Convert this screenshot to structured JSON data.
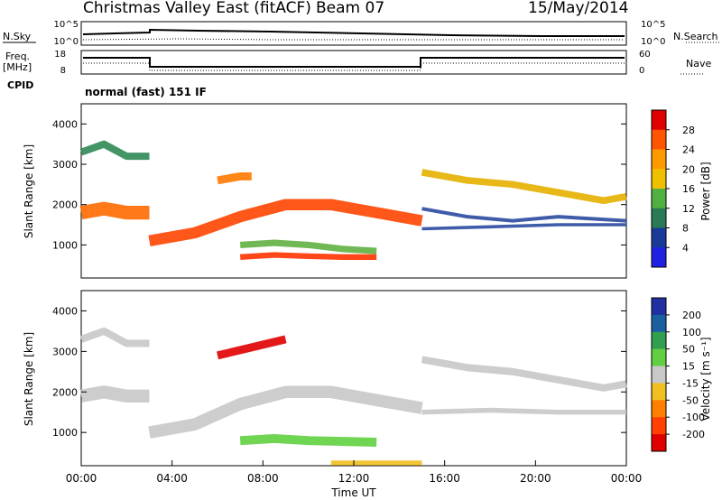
{
  "header": {
    "title": "Christmas Valley East (fitACF)",
    "beam": "Beam 07",
    "date": "15/May/2014"
  },
  "panels": {
    "nsky": {
      "left_label": "N.Sky",
      "left_ticks": [
        "10^5",
        "10^0"
      ],
      "right_ticks": [
        "10^5",
        "10^0"
      ],
      "right_label": "N.Search"
    },
    "freq": {
      "left_label_1": "Freq.",
      "left_label_2": "[MHz]",
      "left_ticks": [
        "18",
        "8"
      ],
      "right_ticks": [
        "60",
        "0"
      ],
      "right_label": "Nave"
    },
    "cpid": {
      "left_label": "CPID",
      "text": "normal (fast) 151 IF"
    }
  },
  "chart_data": [
    {
      "type": "heatmap",
      "name": "power",
      "ylabel": "Slant Range [km]",
      "yticks": [
        1000,
        2000,
        3000,
        4000
      ],
      "ylim": [
        180,
        4500
      ],
      "xlim": [
        0,
        24
      ],
      "colorbar": {
        "label": "Power [dB]",
        "ticks": [
          "28",
          "24",
          "20",
          "16",
          "12",
          "8",
          "4"
        ],
        "colors": [
          "#e00000",
          "#ff5500",
          "#ff9900",
          "#eec000",
          "#50b040",
          "#2a7a55",
          "#1a3a9a",
          "#2020e0"
        ]
      },
      "bands": [
        {
          "t": [
            0,
            1,
            2,
            3
          ],
          "r": [
            3300,
            3500,
            3200,
            3200
          ],
          "w": 180,
          "c": "#2f8a55"
        },
        {
          "t": [
            0,
            1,
            2,
            3
          ],
          "r": [
            1800,
            1900,
            1800,
            1800
          ],
          "w": 340,
          "c": "#ff6a00"
        },
        {
          "t": [
            3,
            5,
            7,
            9,
            11,
            13,
            15
          ],
          "r": [
            1100,
            1300,
            1700,
            2000,
            2000,
            1800,
            1600
          ],
          "w": 280,
          "c": "#ff4400"
        },
        {
          "t": [
            7,
            8.5,
            10,
            11.5,
            13
          ],
          "r": [
            1000,
            1050,
            1000,
            900,
            850
          ],
          "w": 160,
          "c": "#60b040"
        },
        {
          "t": [
            7,
            8.5,
            10,
            11.5,
            13
          ],
          "r": [
            700,
            750,
            720,
            700,
            700
          ],
          "w": 140,
          "c": "#ff3300"
        },
        {
          "t": [
            6,
            7,
            7.5
          ],
          "r": [
            2600,
            2700,
            2700
          ],
          "w": 200,
          "c": "#ff7a00"
        },
        {
          "t": [
            15,
            17,
            19,
            21,
            23,
            24
          ],
          "r": [
            2800,
            2600,
            2500,
            2300,
            2100,
            2200
          ],
          "w": 170,
          "c": "#e6b000"
        },
        {
          "t": [
            15,
            17,
            19,
            21,
            24
          ],
          "r": [
            1900,
            1700,
            1600,
            1700,
            1600
          ],
          "w": 90,
          "c": "#2a4aa0"
        },
        {
          "t": [
            15,
            18,
            21,
            24
          ],
          "r": [
            1400,
            1450,
            1500,
            1500
          ],
          "w": 80,
          "c": "#2a4aa0"
        }
      ]
    },
    {
      "type": "heatmap",
      "name": "velocity",
      "ylabel": "Slant Range [km]",
      "yticks": [
        1000,
        2000,
        3000,
        4000
      ],
      "ylim": [
        180,
        4500
      ],
      "xlim": [
        0,
        24
      ],
      "xticks": [
        "00:00",
        "04:00",
        "08:00",
        "12:00",
        "16:00",
        "20:00",
        "00:00"
      ],
      "xlabel": "Time UT",
      "colorbar": {
        "label": "Velocity [m s⁻¹]",
        "ticks": [
          "200",
          "100",
          "50",
          "15",
          "-15",
          "-50",
          "-100",
          "-200"
        ],
        "colors": [
          "#2030a0",
          "#1a60a0",
          "#30a050",
          "#60d040",
          "#c8c8c8",
          "#f0c020",
          "#ff8000",
          "#ff4000",
          "#e00000"
        ]
      },
      "bands": [
        {
          "t": [
            0,
            1,
            2,
            3
          ],
          "r": [
            3300,
            3500,
            3200,
            3200
          ],
          "w": 180,
          "c": "#c8c8c8"
        },
        {
          "t": [
            0,
            1,
            2,
            3
          ],
          "r": [
            1900,
            2000,
            1900,
            1900
          ],
          "w": 320,
          "c": "#c8c8c8"
        },
        {
          "t": [
            3,
            5,
            7,
            9,
            11,
            13,
            15
          ],
          "r": [
            1000,
            1200,
            1700,
            2000,
            2000,
            1800,
            1600
          ],
          "w": 300,
          "c": "#c8c8c8"
        },
        {
          "t": [
            7,
            8.5,
            10,
            11.5,
            13
          ],
          "r": [
            800,
            850,
            800,
            780,
            760
          ],
          "w": 220,
          "c": "#60d040"
        },
        {
          "t": [
            6,
            7.5,
            9
          ],
          "r": [
            2900,
            3100,
            3300
          ],
          "w": 200,
          "c": "#e00000"
        },
        {
          "t": [
            15,
            17,
            19,
            21,
            23,
            24
          ],
          "r": [
            2800,
            2600,
            2500,
            2300,
            2100,
            2200
          ],
          "w": 180,
          "c": "#c8c8c8"
        },
        {
          "t": [
            15,
            18,
            21,
            24
          ],
          "r": [
            1500,
            1550,
            1500,
            1500
          ],
          "w": 120,
          "c": "#c8c8c8"
        },
        {
          "t": [
            11,
            13,
            15
          ],
          "r": [
            250,
            250,
            250
          ],
          "w": 120,
          "c": "#f0c020"
        }
      ]
    }
  ]
}
